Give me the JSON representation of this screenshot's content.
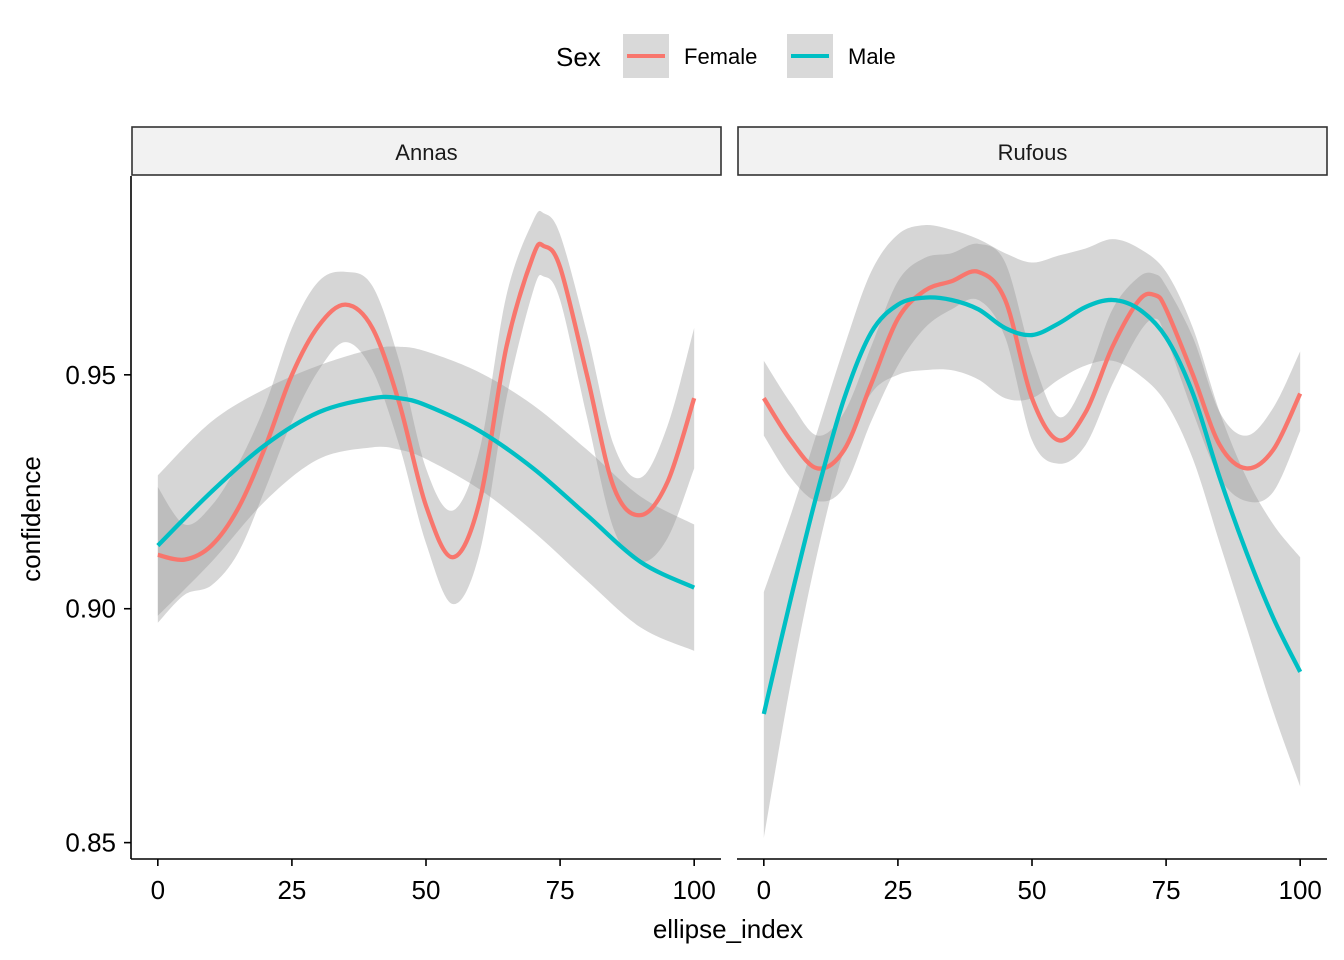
{
  "chart_data": {
    "type": "line",
    "xlabel": "ellipse_index",
    "ylabel": "confidence",
    "xlim": [
      -5,
      105
    ],
    "ylim": [
      0.8465,
      0.9925
    ],
    "xticks": [
      0,
      25,
      50,
      75,
      100
    ],
    "xtick_labels": [
      "0",
      "25",
      "50",
      "75",
      "100"
    ],
    "yticks": [
      0.85,
      0.9,
      0.95
    ],
    "ytick_labels": [
      "0.85",
      "0.90",
      "0.95"
    ],
    "grid": false,
    "legend": {
      "position": "top",
      "title": "Sex",
      "entries": [
        {
          "label": "Female",
          "color": "#F8766D"
        },
        {
          "label": "Male",
          "color": "#00BFC4"
        }
      ],
      "key_fill": "#d9d9d9"
    },
    "ribbon_color": "#999999",
    "panels": [
      {
        "strip": "Annas",
        "series": [
          {
            "name": "Female",
            "color": "#F8766D",
            "x": [
              0,
              5,
              10,
              15,
              20,
              25,
              30,
              35,
              40,
              45,
              50,
              55,
              60,
              65,
              70,
              72,
              75,
              80,
              85,
              90,
              95,
              100
            ],
            "y": [
              0.9115,
              0.9105,
              0.9135,
              0.9215,
              0.9345,
              0.95,
              0.9605,
              0.965,
              0.96,
              0.944,
              0.922,
              0.911,
              0.923,
              0.956,
              0.9755,
              0.9775,
              0.973,
              0.95,
              0.926,
              0.92,
              0.927,
              0.945
            ],
            "lower": [
              0.897,
              0.903,
              0.905,
              0.912,
              0.9255,
              0.94,
              0.951,
              0.957,
              0.951,
              0.935,
              0.914,
              0.901,
              0.912,
              0.945,
              0.968,
              0.971,
              0.966,
              0.941,
              0.917,
              0.91,
              0.915,
              0.93
            ],
            "upper": [
              0.926,
              0.918,
              0.922,
              0.931,
              0.9435,
              0.96,
              0.97,
              0.972,
              0.969,
              0.953,
              0.93,
              0.921,
              0.934,
              0.967,
              0.983,
              0.9845,
              0.98,
              0.959,
              0.935,
              0.928,
              0.939,
              0.96
            ]
          },
          {
            "name": "Male",
            "color": "#00BFC4",
            "x": [
              0,
              10,
              20,
              30,
              40,
              45,
              50,
              60,
              70,
              80,
              90,
              100
            ],
            "y": [
              0.9135,
              0.925,
              0.935,
              0.942,
              0.945,
              0.945,
              0.9435,
              0.938,
              0.93,
              0.92,
              0.91,
              0.9045
            ],
            "lower": [
              0.8985,
              0.91,
              0.923,
              0.932,
              0.9345,
              0.934,
              0.932,
              0.9255,
              0.9165,
              0.906,
              0.896,
              0.891
            ],
            "upper": [
              0.9285,
              0.94,
              0.947,
              0.952,
              0.9555,
              0.956,
              0.955,
              0.9505,
              0.9435,
              0.934,
              0.924,
              0.918
            ]
          }
        ]
      },
      {
        "strip": "Rufous",
        "series": [
          {
            "name": "Female",
            "color": "#F8766D",
            "x": [
              0,
              5,
              10,
              15,
              20,
              25,
              30,
              35,
              40,
              45,
              50,
              55,
              60,
              65,
              70,
              73,
              75,
              80,
              85,
              90,
              95,
              100
            ],
            "y": [
              0.945,
              0.936,
              0.93,
              0.934,
              0.948,
              0.962,
              0.968,
              0.97,
              0.972,
              0.966,
              0.945,
              0.936,
              0.942,
              0.956,
              0.966,
              0.967,
              0.964,
              0.95,
              0.935,
              0.93,
              0.934,
              0.946
            ],
            "lower": [
              0.937,
              0.928,
              0.923,
              0.926,
              0.94,
              0.952,
              0.96,
              0.964,
              0.966,
              0.958,
              0.936,
              0.931,
              0.935,
              0.948,
              0.959,
              0.962,
              0.958,
              0.942,
              0.928,
              0.923,
              0.925,
              0.938
            ],
            "upper": [
              0.953,
              0.944,
              0.937,
              0.942,
              0.956,
              0.97,
              0.975,
              0.976,
              0.978,
              0.974,
              0.954,
              0.941,
              0.949,
              0.964,
              0.971,
              0.9715,
              0.969,
              0.958,
              0.942,
              0.937,
              0.943,
              0.955
            ]
          },
          {
            "name": "Male",
            "color": "#00BFC4",
            "x": [
              0,
              5,
              10,
              15,
              20,
              25,
              30,
              35,
              40,
              45,
              50,
              55,
              60,
              65,
              70,
              75,
              80,
              85,
              90,
              95,
              100
            ],
            "y": [
              0.8775,
              0.902,
              0.925,
              0.945,
              0.959,
              0.965,
              0.9665,
              0.966,
              0.964,
              0.96,
              0.9585,
              0.961,
              0.9645,
              0.966,
              0.964,
              0.958,
              0.946,
              0.928,
              0.912,
              0.898,
              0.8865
            ],
            "lower": [
              0.851,
              0.884,
              0.912,
              0.934,
              0.946,
              0.95,
              0.951,
              0.951,
              0.949,
              0.945,
              0.945,
              0.949,
              0.952,
              0.953,
              0.95,
              0.944,
              0.932,
              0.914,
              0.896,
              0.878,
              0.862
            ],
            "upper": [
              0.9035,
              0.92,
              0.938,
              0.956,
              0.972,
              0.98,
              0.982,
              0.981,
              0.979,
              0.976,
              0.974,
              0.9755,
              0.977,
              0.979,
              0.977,
              0.972,
              0.96,
              0.942,
              0.928,
              0.918,
              0.911
            ]
          }
        ]
      }
    ]
  }
}
